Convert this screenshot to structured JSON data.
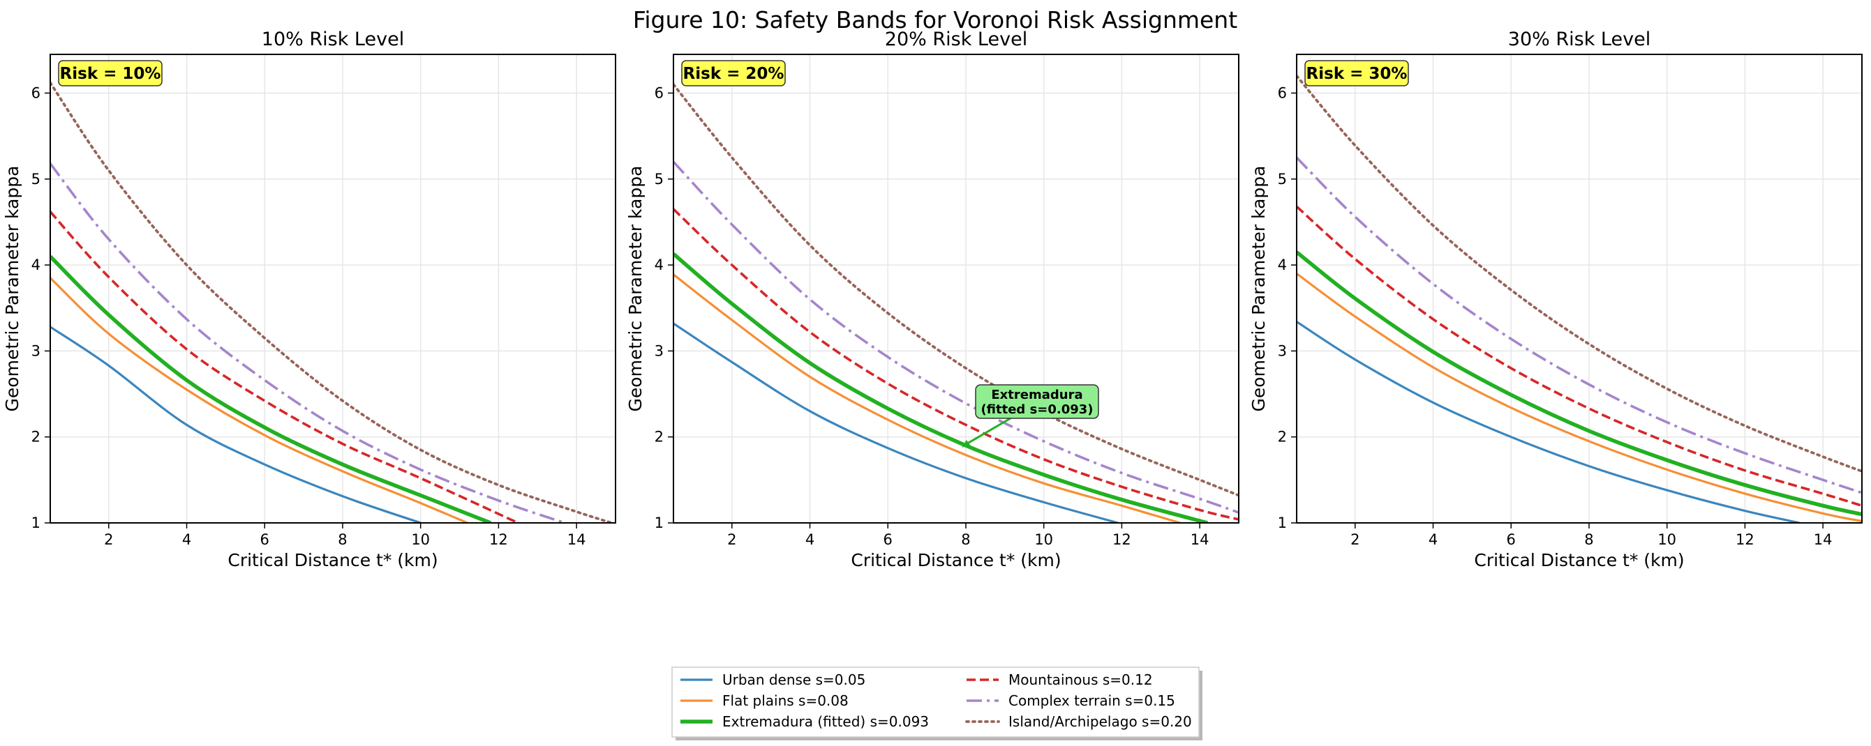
{
  "figure_title": "Figure 10: Safety Bands for Voronoi Risk Assignment",
  "colors": {
    "urban": "#3a86be",
    "flat": "#f68f35",
    "extremadura": "#22b022",
    "mountainous": "#d62728",
    "complex": "#a585cc",
    "island": "#97645a",
    "badge_fill": "#ffff55",
    "annotation_fill": "#90ee90",
    "grid": "#e6e6e6"
  },
  "chart_data": [
    {
      "type": "line",
      "title": "10% Risk Level",
      "badge": "Risk = 10%",
      "xlabel": "Critical Distance t* (km)",
      "ylabel": "Geometric Parameter kappa",
      "xlim": [
        0.5,
        15
      ],
      "ylim": [
        1,
        6.45
      ],
      "xticks": [
        "2",
        "4",
        "6",
        "8",
        "10",
        "12",
        "14"
      ],
      "yticks": [
        "1",
        "2",
        "3",
        "4",
        "5",
        "6"
      ],
      "grid": true,
      "series": [
        {
          "name": "Urban dense s=0.05",
          "key": "urban",
          "x": [
            0.5,
            2,
            4,
            6,
            8,
            10
          ],
          "y": [
            3.28,
            2.83,
            2.14,
            1.68,
            1.31,
            1.0
          ]
        },
        {
          "name": "Flat plains s=0.08",
          "key": "flat",
          "x": [
            0.5,
            2,
            4,
            6,
            8,
            10,
            11.2
          ],
          "y": [
            3.85,
            3.2,
            2.55,
            2.02,
            1.6,
            1.23,
            1.0
          ]
        },
        {
          "name": "Extremadura (fitted) s=0.093",
          "key": "extremadura",
          "x": [
            0.5,
            2,
            4,
            6,
            8,
            10,
            11.8
          ],
          "y": [
            4.1,
            3.42,
            2.66,
            2.11,
            1.68,
            1.32,
            1.0
          ]
        },
        {
          "name": "Mountainous s=0.12",
          "key": "mountainous",
          "x": [
            0.5,
            2,
            4,
            6,
            8,
            10,
            12.5
          ],
          "y": [
            4.62,
            3.86,
            3.02,
            2.42,
            1.92,
            1.52,
            1.0
          ]
        },
        {
          "name": "Complex terrain s=0.15",
          "key": "complex",
          "x": [
            0.5,
            2,
            4,
            6,
            8,
            10,
            12,
            13.7
          ],
          "y": [
            5.18,
            4.3,
            3.37,
            2.66,
            2.07,
            1.62,
            1.26,
            1.0
          ]
        },
        {
          "name": "Island/Archipelago s=0.20",
          "key": "island",
          "x": [
            0.5,
            2,
            4,
            6,
            8,
            10,
            12,
            14,
            14.9
          ],
          "y": [
            6.12,
            5.1,
            4.0,
            3.15,
            2.42,
            1.85,
            1.44,
            1.13,
            1.0
          ]
        }
      ]
    },
    {
      "type": "line",
      "title": "20% Risk Level",
      "badge": "Risk = 20%",
      "xlabel": "Critical Distance t* (km)",
      "ylabel": "Geometric Parameter kappa",
      "xlim": [
        0.5,
        15
      ],
      "ylim": [
        1,
        6.45
      ],
      "xticks": [
        "2",
        "4",
        "6",
        "8",
        "10",
        "12",
        "14"
      ],
      "yticks": [
        "1",
        "2",
        "3",
        "4",
        "5",
        "6"
      ],
      "grid": true,
      "annotation": {
        "line1": "Extremadura",
        "line2": "(fitted s=0.093)",
        "target_x": 7.9,
        "target_y": 1.88
      },
      "series": [
        {
          "name": "Urban dense s=0.05",
          "key": "urban",
          "x": [
            0.5,
            2,
            4,
            6,
            8,
            10,
            11.9
          ],
          "y": [
            3.32,
            2.87,
            2.3,
            1.87,
            1.52,
            1.24,
            1.0
          ]
        },
        {
          "name": "Flat plains s=0.08",
          "key": "flat",
          "x": [
            0.5,
            2,
            4,
            6,
            8,
            10,
            12,
            13.5
          ],
          "y": [
            3.89,
            3.36,
            2.7,
            2.2,
            1.79,
            1.46,
            1.2,
            1.0
          ]
        },
        {
          "name": "Extremadura (fitted) s=0.093",
          "key": "extremadura",
          "x": [
            0.5,
            2,
            4,
            6,
            8,
            10,
            12,
            14.2
          ],
          "y": [
            4.13,
            3.55,
            2.86,
            2.33,
            1.9,
            1.56,
            1.27,
            1.0
          ]
        },
        {
          "name": "Mountainous s=0.12",
          "key": "mountainous",
          "x": [
            0.5,
            2,
            4,
            6,
            8,
            10,
            12,
            14,
            15
          ],
          "y": [
            4.65,
            4.0,
            3.22,
            2.62,
            2.14,
            1.74,
            1.42,
            1.15,
            1.04
          ]
        },
        {
          "name": "Complex terrain s=0.15",
          "key": "complex",
          "x": [
            0.5,
            2,
            4,
            6,
            8,
            10,
            12,
            14,
            15
          ],
          "y": [
            5.2,
            4.47,
            3.6,
            2.93,
            2.39,
            1.95,
            1.58,
            1.28,
            1.12
          ]
        },
        {
          "name": "Island/Archipelago s=0.20",
          "key": "island",
          "x": [
            0.5,
            2,
            4,
            6,
            8,
            10,
            12,
            14,
            15
          ],
          "y": [
            6.1,
            5.25,
            4.23,
            3.44,
            2.8,
            2.28,
            1.86,
            1.5,
            1.32
          ]
        }
      ]
    },
    {
      "type": "line",
      "title": "30% Risk Level",
      "badge": "Risk = 30%",
      "xlabel": "Critical Distance t* (km)",
      "ylabel": "Geometric Parameter kappa",
      "xlim": [
        0.5,
        15
      ],
      "ylim": [
        1,
        6.45
      ],
      "xticks": [
        "2",
        "4",
        "6",
        "8",
        "10",
        "12",
        "14"
      ],
      "yticks": [
        "1",
        "2",
        "3",
        "4",
        "5",
        "6"
      ],
      "grid": true,
      "series": [
        {
          "name": "Urban dense s=0.05",
          "key": "urban",
          "x": [
            0.5,
            2,
            4,
            6,
            8,
            10,
            12,
            13.4
          ],
          "y": [
            3.34,
            2.9,
            2.4,
            2.0,
            1.66,
            1.38,
            1.14,
            1.0
          ]
        },
        {
          "name": "Flat plains s=0.08",
          "key": "flat",
          "x": [
            0.5,
            2,
            4,
            6,
            8,
            10,
            12,
            14,
            15
          ],
          "y": [
            3.9,
            3.4,
            2.81,
            2.34,
            1.95,
            1.62,
            1.34,
            1.11,
            1.02
          ]
        },
        {
          "name": "Extremadura (fitted) s=0.093",
          "key": "extremadura",
          "x": [
            0.5,
            2,
            4,
            6,
            8,
            10,
            12,
            14,
            15
          ],
          "y": [
            4.15,
            3.61,
            2.99,
            2.49,
            2.07,
            1.73,
            1.44,
            1.2,
            1.1
          ]
        },
        {
          "name": "Mountainous s=0.12",
          "key": "mountainous",
          "x": [
            0.5,
            2,
            4,
            6,
            8,
            10,
            12,
            14,
            15
          ],
          "y": [
            4.68,
            4.07,
            3.37,
            2.8,
            2.33,
            1.94,
            1.61,
            1.34,
            1.2
          ]
        },
        {
          "name": "Complex terrain s=0.15",
          "key": "complex",
          "x": [
            0.5,
            2,
            4,
            6,
            8,
            10,
            12,
            14,
            15
          ],
          "y": [
            5.25,
            4.56,
            3.78,
            3.14,
            2.61,
            2.17,
            1.81,
            1.5,
            1.35
          ]
        },
        {
          "name": "Island/Archipelago s=0.20",
          "key": "island",
          "x": [
            0.5,
            2,
            4,
            6,
            8,
            10,
            12,
            14,
            15
          ],
          "y": [
            6.2,
            5.39,
            4.46,
            3.71,
            3.08,
            2.56,
            2.13,
            1.77,
            1.6
          ]
        }
      ]
    }
  ],
  "legend": {
    "placement": "bottom-center",
    "entries": [
      {
        "label": "Urban dense s=0.05",
        "key": "urban",
        "style": "solid"
      },
      {
        "label": "Flat plains s=0.08",
        "key": "flat",
        "style": "solid"
      },
      {
        "label": "Extremadura (fitted) s=0.093",
        "key": "extremadura",
        "style": "solid-thick"
      },
      {
        "label": "Mountainous s=0.12",
        "key": "mountainous",
        "style": "dashed"
      },
      {
        "label": "Complex terrain s=0.15",
        "key": "complex",
        "style": "dashdot"
      },
      {
        "label": "Island/Archipelago s=0.20",
        "key": "island",
        "style": "dotted"
      }
    ]
  }
}
